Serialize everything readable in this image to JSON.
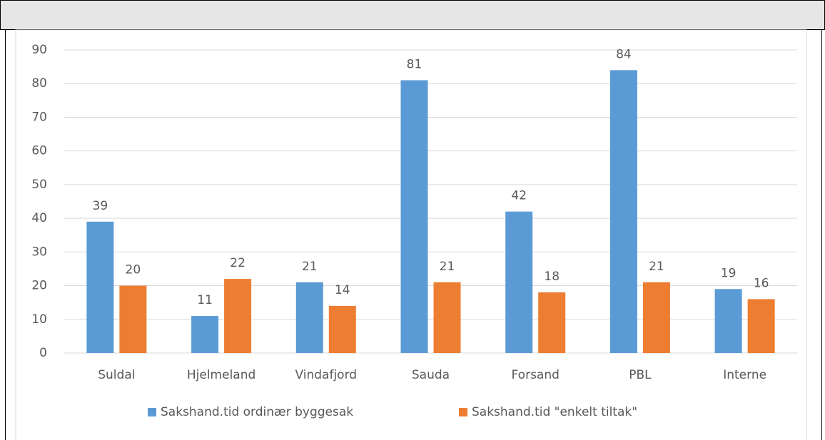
{
  "chart_data": {
    "type": "bar",
    "categories": [
      "Suldal",
      "Hjelmeland",
      "Vindafjord",
      "Sauda",
      "Forsand",
      "PBL",
      "Interne"
    ],
    "series": [
      {
        "name": "Sakshand.tid ordinær byggesak",
        "color": "#5b9bd5",
        "values": [
          39,
          11,
          21,
          81,
          42,
          84,
          19
        ]
      },
      {
        "name": "Sakshand.tid \"enkelt tiltak\"",
        "color": "#ed7d31",
        "values": [
          20,
          22,
          14,
          21,
          18,
          21,
          16
        ]
      }
    ],
    "ylim": [
      0,
      90
    ],
    "yticks": [
      0,
      10,
      20,
      30,
      40,
      50,
      60,
      70,
      80,
      90
    ],
    "grid": true,
    "legend": "bottom"
  }
}
